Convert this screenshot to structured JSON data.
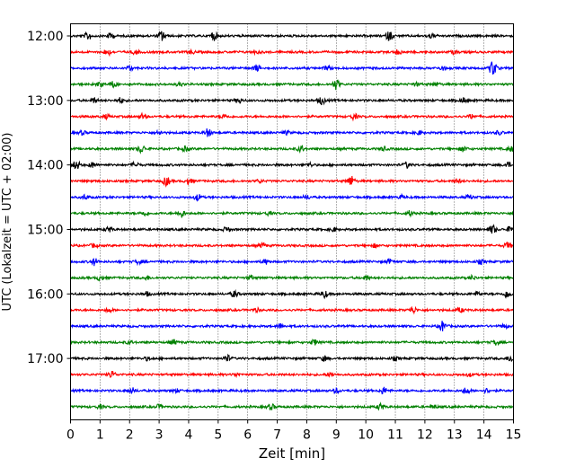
{
  "chart_data": {
    "type": "line",
    "title": "",
    "xlabel": "Zeit  [min]",
    "ylabel": "UTC (Lokalzeit = UTC + 02:00)",
    "xlim": [
      0,
      15
    ],
    "x_ticks": [
      "0",
      "1",
      "2",
      "3",
      "4",
      "5",
      "6",
      "7",
      "8",
      "9",
      "10",
      "11",
      "12",
      "13",
      "14",
      "15"
    ],
    "y_ticks": [
      "12:00",
      "13:00",
      "14:00",
      "15:00",
      "16:00",
      "17:00"
    ],
    "grid": "vertical dotted lines at every minute",
    "trace_interval_min": 15,
    "trace_colors": [
      "#000000",
      "#ff0000",
      "#0000ff",
      "#008000"
    ],
    "traces": [
      {
        "start": "12:00",
        "color": "#000000",
        "events": [
          [
            0.6,
            1
          ],
          [
            1.35,
            0.7
          ],
          [
            3.1,
            1.3
          ],
          [
            4.85,
            1.1
          ],
          [
            10.8,
            1.2
          ],
          [
            12.2,
            0.5
          ]
        ]
      },
      {
        "start": "12:15",
        "color": "#ff0000",
        "events": [
          [
            1.25,
            0.8
          ],
          [
            2.2,
            0.5
          ],
          [
            4.1,
            0.4
          ],
          [
            6.3,
            0.4
          ],
          [
            11.1,
            0.6
          ],
          [
            13.0,
            0.4
          ]
        ]
      },
      {
        "start": "12:30",
        "color": "#0000ff",
        "events": [
          [
            2.0,
            0.5
          ],
          [
            6.3,
            0.8
          ],
          [
            8.7,
            0.5
          ],
          [
            12.6,
            0.5
          ],
          [
            14.3,
            2.1
          ]
        ]
      },
      {
        "start": "12:45",
        "color": "#008000",
        "events": [
          [
            1.0,
            0.5
          ],
          [
            1.45,
            0.7
          ],
          [
            3.7,
            0.4
          ],
          [
            9.0,
            1.3
          ],
          [
            11.7,
            0.4
          ],
          [
            12.4,
            0.4
          ]
        ]
      },
      {
        "start": "13:00",
        "color": "#000000",
        "events": [
          [
            0.8,
            0.6
          ],
          [
            1.7,
            0.7
          ],
          [
            5.7,
            0.7
          ],
          [
            8.5,
            1.0
          ],
          [
            13.3,
            0.6
          ]
        ]
      },
      {
        "start": "13:15",
        "color": "#ff0000",
        "events": [
          [
            1.2,
            0.5
          ],
          [
            2.45,
            0.7
          ],
          [
            5.2,
            0.5
          ],
          [
            9.6,
            0.7
          ],
          [
            13.6,
            0.6
          ]
        ]
      },
      {
        "start": "13:30",
        "color": "#0000ff",
        "events": [
          [
            0.4,
            0.5
          ],
          [
            3.0,
            0.5
          ],
          [
            4.65,
            1.0
          ],
          [
            7.3,
            0.4
          ],
          [
            11.8,
            0.5
          ],
          [
            14.5,
            0.5
          ]
        ]
      },
      {
        "start": "13:45",
        "color": "#008000",
        "events": [
          [
            2.4,
            1.0
          ],
          [
            3.9,
            0.6
          ],
          [
            7.8,
            0.8
          ],
          [
            10.6,
            0.5
          ],
          [
            13.3,
            0.7
          ],
          [
            14.9,
            0.6
          ]
        ]
      },
      {
        "start": "14:00",
        "color": "#000000",
        "events": [
          [
            0.2,
            1.2
          ],
          [
            0.75,
            0.7
          ],
          [
            2.2,
            0.6
          ],
          [
            8.1,
            0.5
          ],
          [
            11.4,
            0.7
          ],
          [
            14.8,
            0.7
          ]
        ]
      },
      {
        "start": "14:15",
        "color": "#ff0000",
        "events": [
          [
            3.25,
            1.2
          ],
          [
            4.0,
            0.7
          ],
          [
            6.4,
            0.4
          ],
          [
            9.5,
            1.3
          ],
          [
            13.1,
            0.5
          ]
        ]
      },
      {
        "start": "14:30",
        "color": "#0000ff",
        "events": [
          [
            0.5,
            0.6
          ],
          [
            4.3,
            0.8
          ],
          [
            8.0,
            0.5
          ],
          [
            11.2,
            0.4
          ],
          [
            13.5,
            0.6
          ]
        ]
      },
      {
        "start": "14:45",
        "color": "#008000",
        "events": [
          [
            2.5,
            0.6
          ],
          [
            3.75,
            1.0
          ],
          [
            6.7,
            0.4
          ],
          [
            11.5,
            0.6
          ]
        ]
      },
      {
        "start": "15:00",
        "color": "#000000",
        "events": [
          [
            1.3,
            0.6
          ],
          [
            5.3,
            0.7
          ],
          [
            8.9,
            0.5
          ],
          [
            14.3,
            1.1
          ],
          [
            14.9,
            0.7
          ]
        ]
      },
      {
        "start": "15:15",
        "color": "#ff0000",
        "events": [
          [
            0.8,
            0.5
          ],
          [
            6.5,
            0.6
          ],
          [
            10.3,
            0.4
          ],
          [
            14.8,
            0.8
          ]
        ]
      },
      {
        "start": "15:30",
        "color": "#0000ff",
        "events": [
          [
            0.8,
            0.9
          ],
          [
            2.3,
            0.5
          ],
          [
            6.6,
            0.6
          ],
          [
            10.8,
            0.6
          ],
          [
            13.9,
            0.5
          ]
        ]
      },
      {
        "start": "15:45",
        "color": "#008000",
        "events": [
          [
            1.0,
            0.6
          ],
          [
            2.6,
            0.4
          ],
          [
            6.1,
            0.5
          ],
          [
            10.0,
            0.6
          ],
          [
            13.6,
            0.5
          ]
        ]
      },
      {
        "start": "16:00",
        "color": "#000000",
        "events": [
          [
            2.6,
            0.5
          ],
          [
            5.55,
            0.8
          ],
          [
            8.6,
            0.9
          ],
          [
            13.8,
            0.5
          ],
          [
            14.8,
            1.0
          ]
        ]
      },
      {
        "start": "16:15",
        "color": "#ff0000",
        "events": [
          [
            1.3,
            0.5
          ],
          [
            6.3,
            0.4
          ],
          [
            11.6,
            0.8
          ],
          [
            13.2,
            0.6
          ]
        ]
      },
      {
        "start": "16:30",
        "color": "#0000ff",
        "events": [
          [
            7.1,
            0.6
          ],
          [
            12.6,
            1.3
          ],
          [
            14.7,
            0.5
          ]
        ]
      },
      {
        "start": "16:45",
        "color": "#008000",
        "events": [
          [
            2.0,
            0.4
          ],
          [
            3.5,
            0.6
          ],
          [
            8.25,
            0.7
          ],
          [
            14.4,
            0.6
          ]
        ]
      },
      {
        "start": "17:00",
        "color": "#000000",
        "events": [
          [
            2.6,
            0.4
          ],
          [
            5.3,
            0.8
          ],
          [
            8.6,
            0.6
          ],
          [
            11.0,
            0.4
          ],
          [
            14.9,
            0.8
          ]
        ]
      },
      {
        "start": "17:15",
        "color": "#ff0000",
        "events": [
          [
            1.4,
            0.9
          ],
          [
            5.6,
            0.4
          ],
          [
            8.8,
            0.6
          ],
          [
            13.5,
            0.4
          ]
        ]
      },
      {
        "start": "17:30",
        "color": "#0000ff",
        "events": [
          [
            2.1,
            0.6
          ],
          [
            3.6,
            0.4
          ],
          [
            9.0,
            0.6
          ],
          [
            10.6,
            0.9
          ],
          [
            13.4,
            0.9
          ],
          [
            14.1,
            0.5
          ]
        ]
      },
      {
        "start": "17:45",
        "color": "#008000",
        "events": [
          [
            1.0,
            0.4
          ],
          [
            3.0,
            0.5
          ],
          [
            6.8,
            0.7
          ],
          [
            10.5,
            0.8
          ],
          [
            12.3,
            0.4
          ]
        ]
      }
    ]
  }
}
